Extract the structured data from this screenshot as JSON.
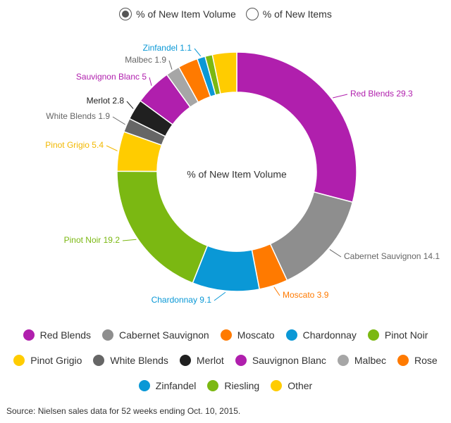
{
  "toggle": {
    "option_volume": "% of New Item Volume",
    "option_items": "% of New Items"
  },
  "chart_data": {
    "type": "pie",
    "title": "% of New Item Volume",
    "slices": [
      {
        "label": "Red Blends",
        "value": 29.3,
        "color": "#b01fad"
      },
      {
        "label": "Cabernet Sauvignon",
        "value": 14.1,
        "color": "#8e8e8e"
      },
      {
        "label": "Moscato",
        "value": 3.9,
        "color": "#ff7a00"
      },
      {
        "label": "Chardonnay",
        "value": 9.1,
        "color": "#0a98d6"
      },
      {
        "label": "Pinot Noir",
        "value": 19.2,
        "color": "#7bb812"
      },
      {
        "label": "Pinot Grigio",
        "value": 5.4,
        "color": "#ffcc00"
      },
      {
        "label": "White Blends",
        "value": 1.9,
        "color": "#666666"
      },
      {
        "label": "Merlot",
        "value": 2.8,
        "color": "#202020"
      },
      {
        "label": "Sauvignon Blanc",
        "value": 5,
        "color": "#b01fad"
      },
      {
        "label": "Malbec",
        "value": 1.9,
        "color": "#a6a6a6"
      },
      {
        "label": "Rose",
        "value": 2.7,
        "color": "#ff7a00"
      },
      {
        "label": "Zinfandel",
        "value": 1.1,
        "color": "#0a98d6"
      },
      {
        "label": "Riesling",
        "value": 1,
        "color": "#7bb812"
      },
      {
        "label": "Other",
        "value": 3.3,
        "color": "#ffcc00"
      }
    ],
    "labeled": [
      "Red Blends",
      "Cabernet Sauvignon",
      "Moscato",
      "Chardonnay",
      "Pinot Noir",
      "Pinot Grigio",
      "White Blends",
      "Merlot",
      "Sauvignon Blanc",
      "Malbec",
      "Zinfandel"
    ]
  },
  "legend": {
    "rows": [
      [
        "Red Blends",
        "Cabernet Sauvignon",
        "Moscato",
        "Chardonnay",
        "Pinot Noir"
      ],
      [
        "Pinot Grigio",
        "White Blends",
        "Merlot",
        "Sauvignon Blanc",
        "Malbec",
        "Rose"
      ],
      [
        "Zinfandel",
        "Riesling",
        "Other"
      ]
    ]
  },
  "source": "Source: Nielsen sales data for 52 weeks ending Oct. 10, 2015."
}
